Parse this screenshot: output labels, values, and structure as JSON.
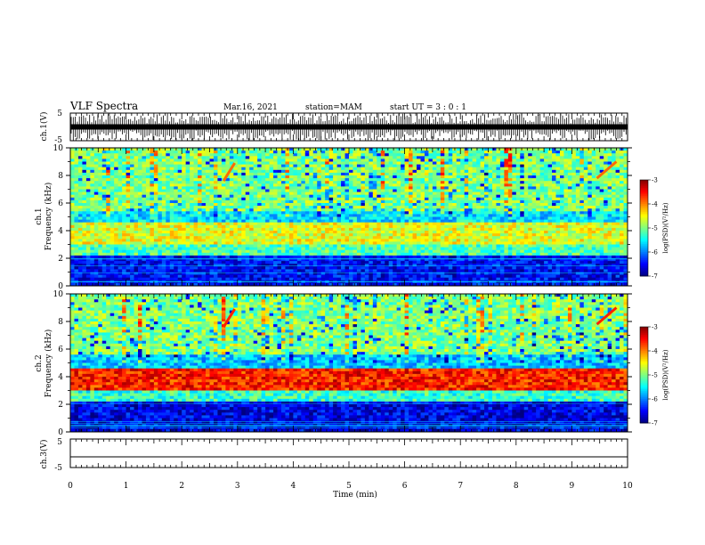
{
  "header": {
    "title": "VLF Spectra",
    "date": "Mar.16, 2021",
    "station": "station=MAM",
    "start": "start UT =  3 : 0 : 1"
  },
  "chart_data": [
    {
      "type": "line",
      "name": "ch1-waveform",
      "ylabel": "ch.1(V)",
      "ylim": [
        -5,
        5
      ],
      "yticks": [
        "5",
        "-5"
      ],
      "note": "dense impulsive waveform across full 0-10 min"
    },
    {
      "type": "heatmap",
      "name": "ch1-spectrogram",
      "ylabel_top": "ch.1",
      "ylabel": "Frequency (kHz)",
      "ylim": [
        0,
        10
      ],
      "yticks": [
        "0",
        "2",
        "4",
        "6",
        "8",
        "10"
      ],
      "xlim": [
        0,
        10
      ],
      "colorbar": {
        "label": "log(PSD)(V²/Hz)",
        "range": [
          -7,
          -3
        ],
        "ticks": [
          "-3",
          "-4",
          "-5",
          "-6",
          "-7"
        ]
      },
      "bands": [
        {
          "from": 0,
          "to": 2.2,
          "level": -6.5
        },
        {
          "from": 2.2,
          "to": 3.0,
          "level": -5.2
        },
        {
          "from": 3.0,
          "to": 4.6,
          "level": -4.6
        },
        {
          "from": 4.6,
          "to": 5.4,
          "level": -5.6
        },
        {
          "from": 5.4,
          "to": 10,
          "level": -5.0
        }
      ]
    },
    {
      "type": "heatmap",
      "name": "ch2-spectrogram",
      "ylabel_top": "ch.2",
      "ylabel": "Frequency (kHz)",
      "ylim": [
        0,
        10
      ],
      "yticks": [
        "0",
        "2",
        "4",
        "6",
        "8",
        "10"
      ],
      "xlim": [
        0,
        10
      ],
      "colorbar": {
        "label": "log(PSD)(V²/Hz)",
        "range": [
          -7,
          -3
        ],
        "ticks": [
          "-3",
          "-4",
          "-5",
          "-6",
          "-7"
        ]
      },
      "bands": [
        {
          "from": 0,
          "to": 2.2,
          "level": -6.6
        },
        {
          "from": 2.2,
          "to": 3.0,
          "level": -5.3
        },
        {
          "from": 3.0,
          "to": 4.6,
          "level": -3.6
        },
        {
          "from": 4.6,
          "to": 5.5,
          "level": -5.7
        },
        {
          "from": 5.5,
          "to": 10,
          "level": -5.0
        }
      ]
    },
    {
      "type": "line",
      "name": "ch3-waveform",
      "ylabel": "ch.3(V)",
      "ylim": [
        -5,
        5
      ],
      "yticks": [
        "5",
        "-5"
      ],
      "x": [
        0,
        10
      ],
      "y": [
        -1,
        -1
      ]
    }
  ],
  "xaxis": {
    "label": "Time (min)",
    "ticks": [
      "0",
      "1",
      "2",
      "3",
      "4",
      "5",
      "6",
      "7",
      "8",
      "9",
      "10"
    ]
  }
}
